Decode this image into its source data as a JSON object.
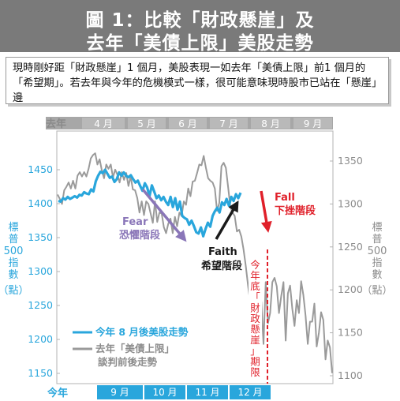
{
  "title": {
    "line1": "圖 1：比較「財政懸崖」及",
    "line2": "去年「美債上限」美股走勢"
  },
  "intro": "現時剛好距「財政懸崖」1 個月，美股表現一如去年「美債上限」前1 個月的「希望期」。若去年與今年的危機模式一樣，很可能意味現時股市已站在「懸崖」邊",
  "colors": {
    "this_year": "#29a6dc",
    "last_year": "#9a9a9a",
    "fear": "#8a76b8",
    "faith": "#1a1a1a",
    "fall": "#e0202a",
    "banner": "#7a7a7a"
  },
  "chart_data": {
    "type": "line",
    "left_axis": {
      "ticks": [
        "1150",
        "1200",
        "1250",
        "1300",
        "1350",
        "1400",
        "1450"
      ],
      "ylim": [
        1145,
        1485
      ],
      "label_chars": [
        "標",
        "普",
        "500",
        "指",
        "數",
        "（點）"
      ]
    },
    "right_axis": {
      "ticks": [
        "1100",
        "1150",
        "1200",
        "1250",
        "1300",
        "1350"
      ],
      "ylim": [
        1088,
        1382
      ],
      "label_chars": [
        "標",
        "普",
        "500",
        "指",
        "數",
        "（點）"
      ]
    },
    "top_axis": {
      "label": "去年",
      "months": [
        "4 月",
        "5 月",
        "6 月",
        "7 月",
        "8 月",
        "9 月"
      ]
    },
    "bottom_axis": {
      "label": "今年",
      "months": [
        "9 月",
        "10 月",
        "11 月",
        "12 月"
      ]
    },
    "series": [
      {
        "name": "今年 8 月後美股走勢",
        "axis": "left",
        "values": [
          1404,
          1403,
          1408,
          1406,
          1410,
          1407,
          1409,
          1411,
          1409,
          1413,
          1412,
          1417,
          1415,
          1414,
          1421,
          1418,
          1433,
          1441,
          1447,
          1445,
          1450,
          1444,
          1438,
          1440,
          1432,
          1436,
          1446,
          1441,
          1446,
          1441,
          1439,
          1442,
          1436,
          1431,
          1434,
          1426,
          1419,
          1430,
          1424,
          1411,
          1427,
          1418,
          1408,
          1412,
          1405,
          1410,
          1403,
          1398,
          1410,
          1395,
          1408,
          1391,
          1403,
          1382,
          1379,
          1377,
          1369,
          1375,
          1367,
          1358,
          1356,
          1365,
          1352,
          1363,
          1372,
          1366,
          1382,
          1389,
          1394,
          1387,
          1402,
          1398,
          1407,
          1397,
          1410,
          1404,
          1414,
          1408,
          1416
        ]
      },
      {
        "name": "去年「美債上限」談判前後走勢",
        "axis": "right",
        "values": [
          1311,
          1306,
          1300,
          1316,
          1320,
          1325,
          1318,
          1327,
          1318,
          1333,
          1337,
          1332,
          1337,
          1332,
          1341,
          1353,
          1357,
          1359,
          1346,
          1352,
          1339,
          1330,
          1346,
          1341,
          1346,
          1331,
          1340,
          1334,
          1325,
          1337,
          1328,
          1336,
          1321,
          1332,
          1317,
          1316,
          1307,
          1290,
          1303,
          1287,
          1303,
          1300,
          1289,
          1278,
          1303,
          1279,
          1290,
          1289,
          1273,
          1266,
          1277,
          1283,
          1266,
          1285,
          1274,
          1290,
          1286,
          1303,
          1299,
          1318,
          1309,
          1326,
          1327,
          1336,
          1346,
          1345,
          1356,
          1342,
          1330,
          1327,
          1325,
          1318,
          1292,
          1301,
          1344,
          1348,
          1342,
          1320,
          1297,
          1290,
          1286,
          1268,
          1270,
          1262,
          1247,
          1228,
          1205,
          1185,
          1158,
          1125,
          1168,
          1191,
          1186,
          1137,
          1209,
          1161,
          1173,
          1209,
          1214,
          1204,
          1173,
          1193,
          1209,
          1141,
          1196,
          1205,
          1178,
          1158,
          1188,
          1173,
          1210,
          1194,
          1170,
          1137,
          1163,
          1163,
          1184,
          1134,
          1150,
          1174,
          1165,
          1119,
          1141,
          1133,
          1103
        ]
      }
    ],
    "annotations": {
      "fear_en": "Fear",
      "fear_zh": "恐懼階段",
      "faith_en": "Faith",
      "faith_zh": "希望階段",
      "fall_en": "Fall",
      "fall_zh": "下挫階段",
      "deadline_chars": [
        "今",
        "年",
        "底",
        "「",
        "財",
        "政",
        "懸",
        "崖",
        "」",
        "期",
        "限"
      ]
    },
    "legend": {
      "placement": "bottom-left",
      "this_year": "今年 8 月後美股走勢",
      "last_year_1": "去年「美債上限」",
      "last_year_2": "談判前後走勢"
    },
    "grid": false
  }
}
